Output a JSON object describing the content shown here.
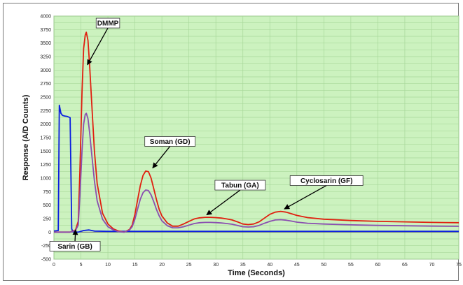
{
  "chart_data": {
    "type": "line",
    "title": "",
    "xlabel": "Time (Seconds)",
    "ylabel": "Response (A/D Counts)",
    "xlim": [
      0,
      75
    ],
    "ylim": [
      -500,
      4000
    ],
    "xticks": [
      0,
      5,
      10,
      15,
      20,
      25,
      30,
      35,
      40,
      45,
      50,
      55,
      60,
      65,
      70,
      75
    ],
    "yticks": [
      -500,
      -375,
      -250,
      -125,
      0,
      125,
      250,
      375,
      500,
      625,
      750,
      875,
      1000,
      1125,
      1250,
      1375,
      1500,
      1625,
      1750,
      1875,
      2000,
      2125,
      2250,
      2375,
      2500,
      2625,
      2750,
      2875,
      3000,
      3125,
      3250,
      3375,
      3500,
      3625,
      3750,
      3875,
      4000
    ],
    "ytick_labels_shown": [
      -500,
      -250,
      0,
      250,
      500,
      750,
      1000,
      1250,
      1500,
      1750,
      2000,
      2250,
      2500,
      2750,
      3000,
      3250,
      3500,
      3750,
      4000
    ],
    "grid": true,
    "plot_background": "#ccf2bf",
    "grid_color": "#a8d89a",
    "series": [
      {
        "color": "#0a1ee0",
        "x": [
          0,
          0.8,
          1.0,
          1.3,
          1.6,
          2.0,
          2.5,
          3.0,
          3.3,
          3.5,
          3.8,
          4.5,
          5.5,
          6.5,
          7.5,
          10,
          20,
          40,
          60,
          75
        ],
        "y": [
          20,
          30,
          2350,
          2200,
          2160,
          2150,
          2140,
          2120,
          60,
          10,
          0,
          0,
          30,
          40,
          20,
          15,
          15,
          15,
          15,
          15
        ]
      },
      {
        "color": "#e02010",
        "x": [
          0,
          3.0,
          4.0,
          4.5,
          4.8,
          5.2,
          5.5,
          5.8,
          6.0,
          6.3,
          6.6,
          7.0,
          7.5,
          8.0,
          9.0,
          10.0,
          11.0,
          12.0,
          13.0,
          14.0,
          14.5,
          15.0,
          15.5,
          16.0,
          16.5,
          17.0,
          17.5,
          18.0,
          18.5,
          19.0,
          19.5,
          20.0,
          21.0,
          22.0,
          23.0,
          24.0,
          25.0,
          26.0,
          27.0,
          28.0,
          29.0,
          30.0,
          31.0,
          32.0,
          33.0,
          34.0,
          35.0,
          36.0,
          37.0,
          38.0,
          39.0,
          40.0,
          41.0,
          42.0,
          43.0,
          44.0,
          45.0,
          47.0,
          50.0,
          55.0,
          60.0,
          65.0,
          70.0,
          75.0
        ],
        "y": [
          0,
          0,
          40,
          200,
          1100,
          2600,
          3400,
          3650,
          3700,
          3550,
          3100,
          2400,
          1500,
          900,
          350,
          150,
          60,
          20,
          0,
          50,
          130,
          330,
          600,
          860,
          1050,
          1130,
          1120,
          1000,
          800,
          600,
          420,
          300,
          170,
          110,
          110,
          150,
          200,
          245,
          265,
          275,
          275,
          270,
          260,
          245,
          225,
          190,
          150,
          140,
          150,
          190,
          260,
          330,
          370,
          385,
          370,
          340,
          310,
          270,
          240,
          215,
          200,
          190,
          180,
          175
        ]
      },
      {
        "color": "#8a4fb0",
        "x": [
          0,
          3.0,
          4.0,
          4.5,
          4.8,
          5.2,
          5.5,
          5.8,
          6.0,
          6.3,
          6.6,
          7.0,
          7.5,
          8.0,
          9.0,
          10.0,
          11.0,
          12.0,
          13.0,
          14.0,
          14.5,
          15.0,
          15.5,
          16.0,
          16.5,
          17.0,
          17.5,
          18.0,
          18.5,
          19.0,
          19.5,
          20.0,
          21.0,
          22.0,
          23.0,
          24.0,
          25.0,
          26.0,
          27.0,
          28.0,
          29.0,
          30.0,
          31.0,
          32.0,
          33.0,
          34.0,
          35.0,
          36.0,
          37.0,
          38.0,
          39.0,
          40.0,
          41.0,
          42.0,
          43.0,
          44.0,
          45.0,
          47.0,
          50.0,
          55.0,
          60.0,
          65.0,
          70.0,
          75.0
        ],
        "y": [
          0,
          0,
          30,
          130,
          650,
          1500,
          2000,
          2180,
          2200,
          2100,
          1850,
          1450,
          950,
          580,
          240,
          100,
          40,
          10,
          0,
          40,
          100,
          240,
          430,
          610,
          730,
          780,
          770,
          690,
          560,
          420,
          300,
          210,
          120,
          80,
          80,
          100,
          130,
          160,
          175,
          180,
          180,
          176,
          170,
          160,
          147,
          125,
          100,
          95,
          100,
          125,
          165,
          200,
          225,
          230,
          222,
          205,
          185,
          165,
          150,
          135,
          125,
          118,
          112,
          108
        ]
      }
    ],
    "annotations": [
      {
        "text": "DMMP",
        "x": 10.0,
        "y": 3870,
        "ax": 6.2,
        "ay": 3100
      },
      {
        "text": "Soman (GD)",
        "x": 21.5,
        "y": 1680,
        "ax": 18.3,
        "ay": 1190
      },
      {
        "text": "Tabun (GA)",
        "x": 34.5,
        "y": 870,
        "ax": 28.3,
        "ay": 320
      },
      {
        "text": "Cyclosarin (GF)",
        "x": 50.5,
        "y": 955,
        "ax": 42.7,
        "ay": 430
      },
      {
        "text": "Sarin (GB)",
        "x": 3.9,
        "y": -260,
        "ax": 4.0,
        "ay": 40
      }
    ]
  }
}
